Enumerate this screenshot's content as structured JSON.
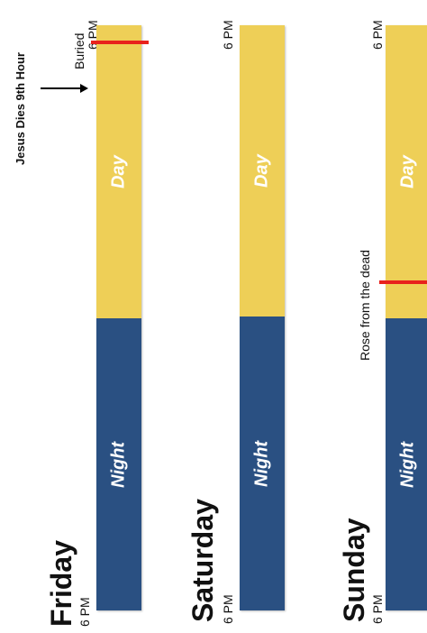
{
  "colors": {
    "day": "#eecf57",
    "night": "#2a5082",
    "marker": "#e8221c"
  },
  "annotation": "Jesus Dies 9th Hour",
  "days": [
    {
      "name": "Friday",
      "start_time": "6 PM",
      "end_time": "6 PM",
      "night_label": "Night",
      "day_label": "Day",
      "event": "Buried"
    },
    {
      "name": "Saturday",
      "start_time": "6 PM",
      "end_time": "6 PM",
      "night_label": "Night",
      "day_label": "Day"
    },
    {
      "name": "Sunday",
      "start_time": "6 PM",
      "end_time": "6 PM",
      "night_label": "Night",
      "day_label": "Day",
      "event": "Rose from the dead"
    }
  ]
}
